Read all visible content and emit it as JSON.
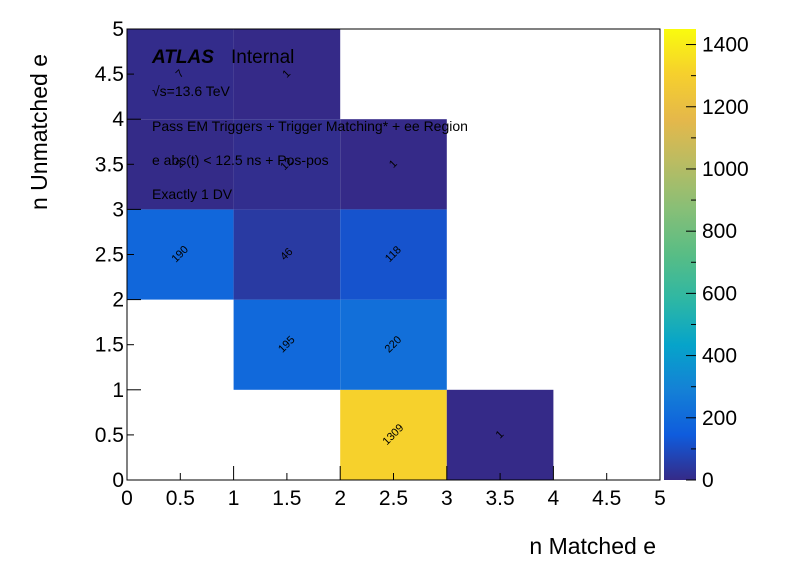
{
  "chart_data": {
    "type": "heatmap",
    "xlabel": "n Matched e",
    "ylabel": "n Unmatched e",
    "xlim": [
      0,
      5
    ],
    "ylim": [
      0,
      5
    ],
    "x_ticks": [
      "0",
      "0.5",
      "1",
      "1.5",
      "2",
      "2.5",
      "3",
      "3.5",
      "4",
      "4.5",
      "5"
    ],
    "y_ticks": [
      "0",
      "0.5",
      "1",
      "1.5",
      "2",
      "2.5",
      "3",
      "3.5",
      "4",
      "4.5",
      "5"
    ],
    "colorbar": {
      "min": 0,
      "max": 1450,
      "ticks": [
        "0",
        "200",
        "400",
        "600",
        "800",
        "1000",
        "1200",
        "1400"
      ],
      "colormap": "parula"
    },
    "cells": [
      {
        "x": [
          2,
          3
        ],
        "y": [
          0,
          1
        ],
        "value": 1309,
        "label": "1309"
      },
      {
        "x": [
          3,
          4
        ],
        "y": [
          0,
          1
        ],
        "value": 1,
        "label": "1"
      },
      {
        "x": [
          1,
          2
        ],
        "y": [
          1,
          2
        ],
        "value": 195,
        "label": "195"
      },
      {
        "x": [
          2,
          3
        ],
        "y": [
          1,
          2
        ],
        "value": 220,
        "label": "220"
      },
      {
        "x": [
          0,
          1
        ],
        "y": [
          2,
          3
        ],
        "value": 190,
        "label": "190"
      },
      {
        "x": [
          1,
          2
        ],
        "y": [
          2,
          3
        ],
        "value": 46,
        "label": "46"
      },
      {
        "x": [
          2,
          3
        ],
        "y": [
          2,
          3
        ],
        "value": 118,
        "label": "118"
      },
      {
        "x": [
          0,
          1
        ],
        "y": [
          3,
          4
        ],
        "value": 2,
        "label": "2"
      },
      {
        "x": [
          1,
          2
        ],
        "y": [
          3,
          4
        ],
        "value": 12,
        "label": "12"
      },
      {
        "x": [
          2,
          3
        ],
        "y": [
          3,
          4
        ],
        "value": 1,
        "label": "1"
      },
      {
        "x": [
          0,
          1
        ],
        "y": [
          4,
          5
        ],
        "value": 7,
        "label": "7"
      },
      {
        "x": [
          1,
          2
        ],
        "y": [
          4,
          5
        ],
        "value": 1,
        "label": "1"
      }
    ],
    "annotations": {
      "atlas": "ATLAS",
      "internal": "Internal",
      "energy": "√s=13.6 TeV",
      "line1": "Pass EM Triggers + Trigger Matching* + ee Region",
      "line2": "e abs(t) < 12.5 ns + Pos-pos",
      "line3": "Exactly 1 DV"
    }
  }
}
